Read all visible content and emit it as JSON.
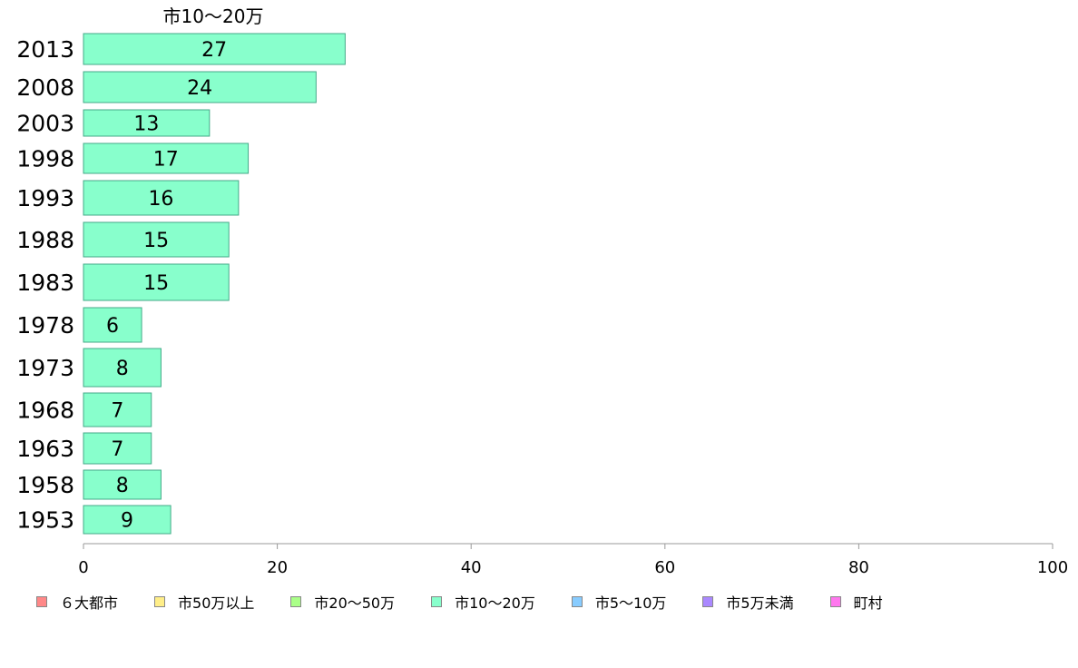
{
  "chart_data": {
    "type": "bar",
    "orientation": "horizontal",
    "title": "市10〜20万",
    "categories": [
      "2013",
      "2008",
      "2003",
      "1998",
      "1993",
      "1988",
      "1983",
      "1978",
      "1973",
      "1968",
      "1963",
      "1958",
      "1953"
    ],
    "values": [
      27,
      24,
      13,
      17,
      16,
      15,
      15,
      6,
      8,
      7,
      7,
      8,
      9
    ],
    "value_labels": [
      "27",
      "24",
      "13",
      "17",
      "16",
      "15",
      "15",
      "6",
      "8",
      "7",
      "7",
      "8",
      "9"
    ],
    "xlim": [
      0,
      100
    ],
    "x_ticks": [
      0,
      20,
      40,
      60,
      80,
      100
    ],
    "grid": false,
    "legend_position": "bottom",
    "bar_color": "#88ffcc",
    "bar_stroke": "#44aa88",
    "legend": [
      {
        "label": "６大都市",
        "color": "#ff8888"
      },
      {
        "label": "市50万以上",
        "color": "#ffee88"
      },
      {
        "label": "市20〜50万",
        "color": "#aaff88"
      },
      {
        "label": "市10〜20万",
        "color": "#88ffcc"
      },
      {
        "label": "市5〜10万",
        "color": "#88ccff"
      },
      {
        "label": "市5万未満",
        "color": "#aa88ff"
      },
      {
        "label": "町村",
        "color": "#ff77ee"
      }
    ]
  }
}
